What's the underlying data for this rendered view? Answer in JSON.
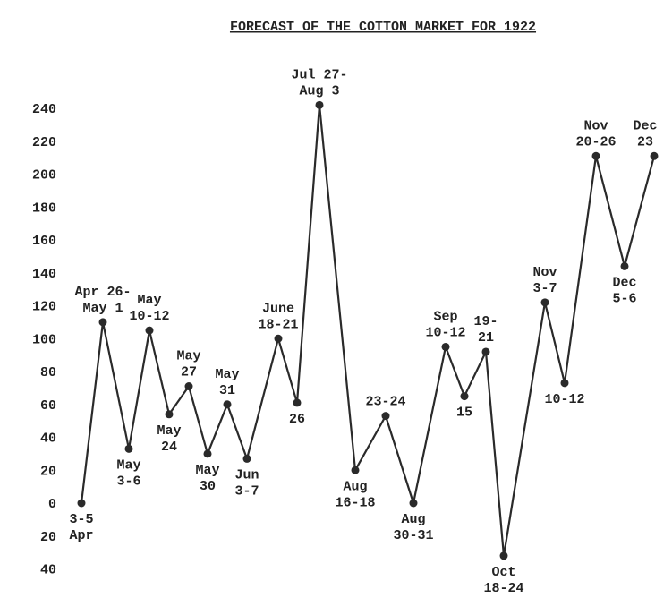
{
  "chart_data": {
    "type": "line",
    "title": "FORECAST OF THE COTTON MARKET FOR 1922",
    "categories": [
      "3-5\nApr",
      "Apr 26-\nMay 1",
      "May\n3-6",
      "May\n10-12",
      "May\n24",
      "May\n27",
      "May\n30",
      "May\n31",
      "Jun\n3-7",
      "June\n18-21",
      "26",
      "Jul 27-\nAug 3",
      "Aug\n16-18",
      "23-24",
      "Aug\n30-31",
      "Sep\n10-12",
      "15",
      "19-\n21",
      "Oct\n18-24",
      "Nov\n3-7",
      "10-12",
      "Nov\n20-26",
      "Dec\n5-6",
      "Dec\n23"
    ],
    "values": [
      0,
      110,
      33,
      105,
      54,
      71,
      30,
      60,
      27,
      100,
      61,
      242,
      20,
      53,
      0,
      95,
      65,
      92,
      -32,
      122,
      73,
      211,
      144,
      211
    ],
    "color": "#2a2a2a",
    "ylim": [
      -40,
      240
    ],
    "yticks": [
      {
        "value": -40,
        "label": "40"
      },
      {
        "value": -20,
        "label": "20"
      },
      0,
      20,
      40,
      60,
      80,
      100,
      120,
      140,
      160,
      180,
      200,
      220,
      240
    ]
  }
}
